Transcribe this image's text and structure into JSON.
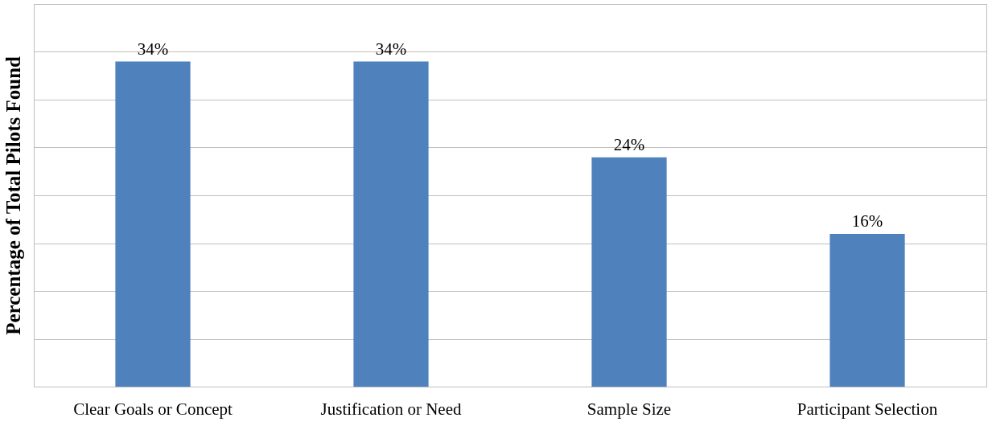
{
  "chart_data": {
    "type": "bar",
    "ylabel": "Percentage of Total Pilots Found",
    "categories": [
      "Clear Goals or Concept",
      "Justification or Need",
      "Sample Size",
      "Participant Selection"
    ],
    "values": [
      34,
      34,
      24,
      16
    ],
    "color": "#4f81bd",
    "ylim": [
      0,
      40
    ],
    "yticks": [
      {
        "value": 0,
        "label": null
      },
      {
        "value": 5,
        "label": null
      },
      {
        "value": 10,
        "label": null
      },
      {
        "value": 15,
        "label": null
      },
      {
        "value": 20,
        "label": null
      },
      {
        "value": 25,
        "label": null
      },
      {
        "value": 30,
        "label": null
      },
      {
        "value": 35,
        "label": null
      },
      {
        "value": 40,
        "label": null
      }
    ],
    "value_labels": [
      "34%",
      "34%",
      "24%",
      "16%"
    ],
    "grid": "y",
    "tick_labels": "x",
    "legend": false
  }
}
